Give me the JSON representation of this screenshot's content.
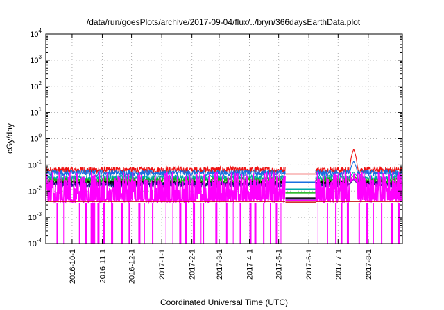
{
  "chart_data": {
    "type": "line",
    "title": "/data/run/goesPlots/archive/2017-09-04/flux/../bryn/366daysEarthData.plot",
    "xlabel": "Coordinated Universal Time (UTC)",
    "ylabel": "cGy/day",
    "yscale": "log",
    "ylim": [
      0.0001,
      10000
    ],
    "y_ticks": [
      {
        "value": 0.0001,
        "base": "10",
        "exp": "-4"
      },
      {
        "value": 0.001,
        "base": "10",
        "exp": "-3"
      },
      {
        "value": 0.01,
        "base": "10",
        "exp": "-2"
      },
      {
        "value": 0.1,
        "base": "10",
        "exp": "-1"
      },
      {
        "value": 1,
        "base": "10",
        "exp": "0"
      },
      {
        "value": 10,
        "base": "10",
        "exp": "1"
      },
      {
        "value": 100,
        "base": "10",
        "exp": "2"
      },
      {
        "value": 1000,
        "base": "10",
        "exp": "3"
      },
      {
        "value": 10000,
        "base": "10",
        "exp": "4"
      }
    ],
    "xlim": [
      "2016-09-04",
      "2017-09-05"
    ],
    "x_ticks": [
      "2016-10-1",
      "2016-11-1",
      "2016-12-1",
      "2017-1-1",
      "2017-2-1",
      "2017-3-1",
      "2017-4-1",
      "2017-5-1",
      "2017-6-1",
      "2017-7-1",
      "2017-8-1"
    ],
    "x_tick_dates": [
      "2016-10-01",
      "2016-11-01",
      "2016-12-01",
      "2017-01-01",
      "2017-02-01",
      "2017-03-01",
      "2017-04-01",
      "2017-05-01",
      "2017-06-01",
      "2017-07-01",
      "2017-08-01"
    ],
    "grid": true,
    "data_gap": [
      "2017-05-08",
      "2017-06-08"
    ],
    "series": [
      {
        "color": "#ee1111",
        "typical": 0.065,
        "noise": 0.12,
        "gap_value": 0.045,
        "peak": {
          "x": "2017-07-17",
          "y": 0.4
        }
      },
      {
        "color": "#1a6fe0",
        "typical": 0.05,
        "noise": 0.12,
        "gap_value": 0.022,
        "peak": {
          "x": "2017-07-17",
          "y": 0.14
        }
      },
      {
        "color": "#00a8a8",
        "typical": 0.032,
        "noise": 0.1,
        "gap_value": 0.012,
        "peak": {
          "x": "2017-07-17",
          "y": 0.055
        }
      },
      {
        "color": "#16b016",
        "typical": 0.026,
        "noise": 0.1,
        "gap_value": 0.0085,
        "peak": {
          "x": "2017-07-17",
          "y": 0.04
        }
      },
      {
        "color": "#000000",
        "typical": 0.02,
        "noise": 0.1,
        "gap_value": 0.0055,
        "peak": {
          "x": "2017-07-17",
          "y": 0.03
        }
      },
      {
        "color": "#1a1a8a",
        "typical": 0.018,
        "noise": 0.1,
        "gap_value": 0.005,
        "peak": {
          "x": "2017-07-17",
          "y": 0.028
        }
      },
      {
        "color": "#ff00ff",
        "typical": 0.02,
        "noise": 0.45,
        "floor": 0.004,
        "gap_value": 0.0045,
        "peak": {
          "x": "2017-07-17",
          "y": 0.03
        }
      },
      {
        "color": "#c81414",
        "typical": 0.004,
        "noise": 0.0,
        "gap_value": 0.0038,
        "peak": null
      }
    ],
    "dropouts_to_axis": [
      "2016-09-15",
      "2016-09-22",
      "2016-10-08",
      "2016-10-14",
      "2016-10-20",
      "2016-10-22",
      "2016-10-24",
      "2016-10-27",
      "2016-11-02",
      "2016-11-10",
      "2016-11-20",
      "2016-11-28",
      "2016-12-08",
      "2016-12-14",
      "2016-12-22",
      "2017-01-05",
      "2017-01-12",
      "2017-01-19",
      "2017-01-25",
      "2017-02-02",
      "2017-02-10",
      "2017-02-12",
      "2017-02-25",
      "2017-03-08",
      "2017-03-15",
      "2017-03-22",
      "2017-04-01",
      "2017-04-06",
      "2017-04-15",
      "2017-04-22",
      "2017-04-28",
      "2017-05-03",
      "2017-06-10",
      "2017-06-20",
      "2017-06-28",
      "2017-07-04",
      "2017-07-10",
      "2017-07-22",
      "2017-07-30",
      "2017-08-06",
      "2017-08-14",
      "2017-08-24",
      "2017-08-31"
    ]
  }
}
